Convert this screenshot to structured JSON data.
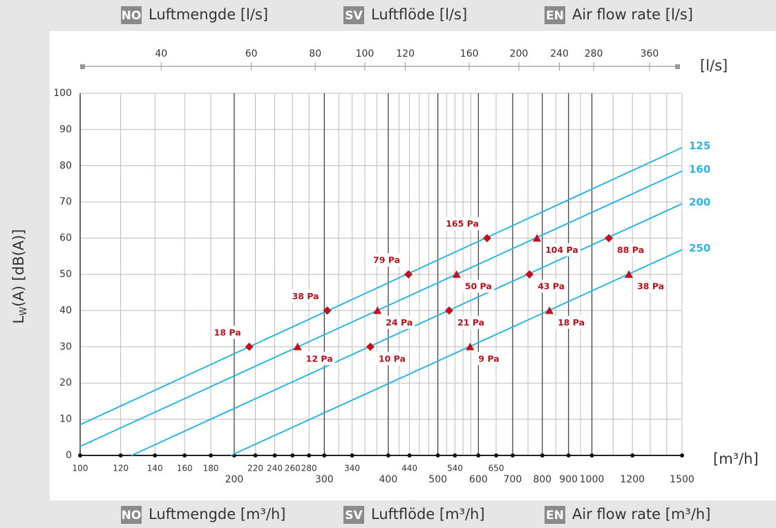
{
  "chart_data": {
    "type": "line",
    "header_top": [
      {
        "badge": "NO",
        "text": "Luftmengde [l/s]"
      },
      {
        "badge": "SV",
        "text": "Luftflöde [l/s]"
      },
      {
        "badge": "EN",
        "text": "Air flow rate [l/s]"
      }
    ],
    "header_bottom": [
      {
        "badge": "NO",
        "text": "Luftmengde [m³/h]"
      },
      {
        "badge": "SV",
        "text": "Luftflöde [m³/h]"
      },
      {
        "badge": "EN",
        "text": "Air flow rate [m³/h]"
      }
    ],
    "ylabel": {
      "main": "L",
      "sub": "W",
      "rest": "(A) [dB(A)]"
    },
    "xunit": "[m³/h]",
    "x2unit": "[l/s]",
    "xscale": "log",
    "xlim": [
      100,
      1500
    ],
    "ylim": [
      0,
      100
    ],
    "yticks": [
      0,
      10,
      20,
      30,
      40,
      50,
      60,
      70,
      80,
      90,
      100
    ],
    "xticks": [
      100,
      120,
      140,
      160,
      180,
      220,
      240,
      260,
      280,
      340,
      440,
      540,
      650
    ],
    "xticks_major": [
      200,
      300,
      400,
      500,
      600,
      700,
      800,
      900,
      1000,
      1200,
      1500
    ],
    "xgrid_major": [
      200,
      300,
      400,
      500,
      600,
      700,
      800,
      900,
      1000
    ],
    "xgrid_minor": [
      120,
      140,
      160,
      180,
      220,
      240,
      260,
      280,
      320,
      340,
      360,
      380,
      420,
      440,
      460,
      480,
      520,
      540,
      560,
      580,
      650,
      750,
      850,
      950,
      1100,
      1200,
      1300,
      1400
    ],
    "x2lim": [
      27.78,
      416.67
    ],
    "x2ticks": [
      40,
      60,
      80,
      100,
      120,
      160,
      200,
      240,
      280,
      360
    ],
    "grid": true,
    "lines": [
      {
        "name": "125",
        "color": "#29b6e6",
        "x": [
          100,
          1500
        ],
        "values": [
          8.5,
          85
        ]
      },
      {
        "name": "160",
        "color": "#29b6e6",
        "x": [
          100,
          1500
        ],
        "values": [
          2.5,
          78.5
        ]
      },
      {
        "name": "200",
        "color": "#29b6e6",
        "x": [
          126,
          1500
        ],
        "values": [
          0,
          69.5
        ]
      },
      {
        "name": "250",
        "color": "#29b6e6",
        "x": [
          197,
          1500
        ],
        "values": [
          0,
          56.8
        ]
      }
    ],
    "points": [
      {
        "marker": "diamond",
        "color": "#c0121d",
        "x": [
          214,
          304,
          438,
          624
        ],
        "values": [
          30,
          40,
          50,
          60
        ],
        "labels": [
          "18 Pa",
          "38 Pa",
          "79 Pa",
          "165 Pa"
        ]
      },
      {
        "marker": "triangle",
        "color": "#c0121d",
        "x": [
          266,
          381,
          544,
          781
        ],
        "values": [
          30,
          40,
          50,
          60
        ],
        "labels": [
          "12 Pa",
          "24 Pa",
          "50 Pa",
          "104 Pa"
        ]
      },
      {
        "marker": "diamond",
        "color": "#c0121d",
        "x": [
          369,
          526,
          755,
          1079
        ],
        "values": [
          30,
          40,
          50,
          60
        ],
        "labels": [
          "10 Pa",
          "21 Pa",
          "43 Pa",
          "88 Pa"
        ]
      },
      {
        "marker": "triangle",
        "color": "#c0121d",
        "x": [
          578,
          826,
          1181
        ],
        "values": [
          30,
          40,
          50
        ],
        "labels": [
          "9 Pa",
          "18 Pa",
          "38 Pa"
        ]
      }
    ]
  }
}
